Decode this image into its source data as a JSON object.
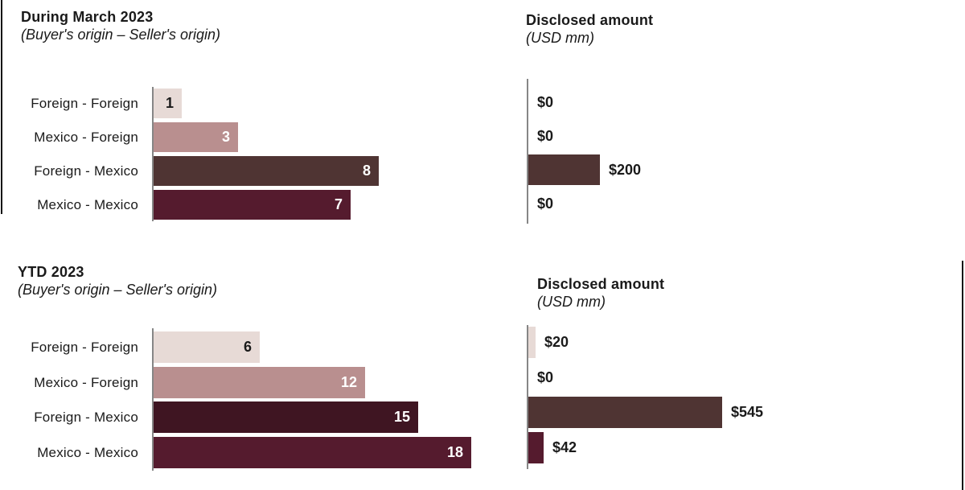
{
  "page": {
    "background": "#ffffff"
  },
  "palette": {
    "light_pink": "#e7dad6",
    "mauve": "#b98f8f",
    "brown": "#4f3433",
    "maroon": "#551b2e",
    "dark_plum": "#3f1522",
    "axis_gray": "#868686",
    "edge_line": "#151515",
    "text_dark": "#1a1a1a",
    "text_light": "#ffffff"
  },
  "chart_data": [
    {
      "type": "bar",
      "orientation": "horizontal",
      "title": "During March 2023",
      "subtitle": "(Buyer's origin – Seller's origin)",
      "amount_title": "Disclosed amount",
      "amount_subtitle": "(USD mm)",
      "categories": [
        "Foreign - Foreign",
        "Mexico - Foreign",
        "Foreign - Mexico",
        "Mexico - Mexico"
      ],
      "series": [
        {
          "name": "deal-count",
          "values": [
            1,
            3,
            8,
            7
          ],
          "labels": [
            "1",
            "3",
            "8",
            "7"
          ],
          "colors": [
            "#e7dad6",
            "#b98f8f",
            "#4f3433",
            "#551b2e"
          ],
          "label_colors": [
            "#1a1a1a",
            "#ffffff",
            "#ffffff",
            "#ffffff"
          ],
          "xlim": [
            0,
            8
          ]
        },
        {
          "name": "disclosed-amount-usd-mm",
          "values": [
            0,
            0,
            200,
            0
          ],
          "labels": [
            "$0",
            "$0",
            "$200",
            "$0"
          ],
          "colors": [
            null,
            null,
            "#4f3433",
            null
          ],
          "xlim": [
            0,
            545
          ]
        }
      ],
      "grid": false,
      "legend": false
    },
    {
      "type": "bar",
      "orientation": "horizontal",
      "title": "YTD 2023",
      "subtitle": "(Buyer's origin – Seller's origin)",
      "amount_title": "Disclosed amount",
      "amount_subtitle": "(USD mm)",
      "categories": [
        "Foreign - Foreign",
        "Mexico - Foreign",
        "Foreign - Mexico",
        "Mexico - Mexico"
      ],
      "series": [
        {
          "name": "deal-count",
          "values": [
            6,
            12,
            15,
            18
          ],
          "labels": [
            "6",
            "12",
            "15",
            "18"
          ],
          "colors": [
            "#e7dad6",
            "#b98f8f",
            "#3f1522",
            "#551b2e"
          ],
          "label_colors": [
            "#1a1a1a",
            "#ffffff",
            "#ffffff",
            "#ffffff"
          ],
          "xlim": [
            0,
            18
          ]
        },
        {
          "name": "disclosed-amount-usd-mm",
          "values": [
            20,
            0,
            545,
            42
          ],
          "labels": [
            "$20",
            "$0",
            "$545",
            "$42"
          ],
          "colors": [
            "#e7dad6",
            null,
            "#4f3433",
            "#551b2e"
          ],
          "xlim": [
            0,
            545
          ]
        }
      ],
      "grid": false,
      "legend": false
    }
  ]
}
